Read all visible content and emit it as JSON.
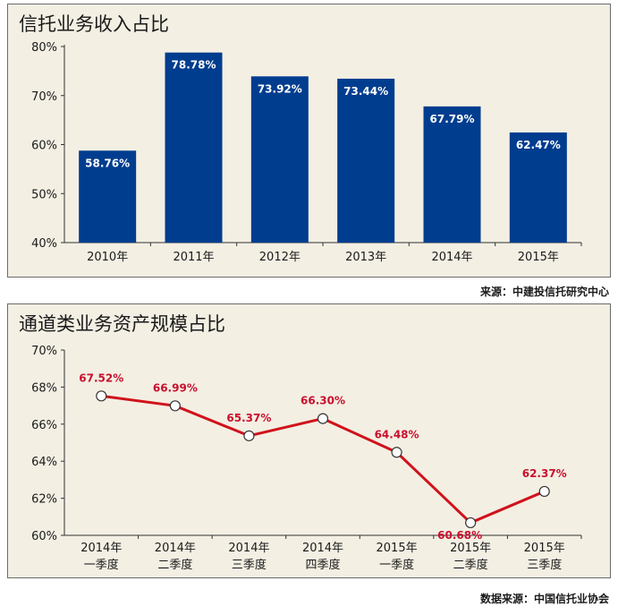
{
  "chart_data": [
    {
      "type": "bar",
      "title": "信托业务收入占比",
      "categories": [
        "2010年",
        "2011年",
        "2012年",
        "2013年",
        "2014年",
        "2015年"
      ],
      "values": [
        58.76,
        78.78,
        73.92,
        73.44,
        67.79,
        62.47
      ],
      "value_labels": [
        "58.76%",
        "78.78%",
        "73.92%",
        "73.44%",
        "67.79%",
        "62.47%"
      ],
      "yticks": [
        "40%",
        "50%",
        "60%",
        "70%",
        "80%"
      ],
      "ylim": [
        40,
        80
      ],
      "grid": false,
      "bar_color": "#003d8f",
      "source": "来源：中建投信托研究中心"
    },
    {
      "type": "line",
      "title": "通道类业务资产规模占比",
      "categories": [
        [
          "2014年",
          "一季度"
        ],
        [
          "2014年",
          "二季度"
        ],
        [
          "2014年",
          "三季度"
        ],
        [
          "2014年",
          "四季度"
        ],
        [
          "2015年",
          "一季度"
        ],
        [
          "2015年",
          "二季度"
        ],
        [
          "2015年",
          "三季度"
        ]
      ],
      "values": [
        67.52,
        66.99,
        65.37,
        66.3,
        64.48,
        60.68,
        62.37
      ],
      "value_labels": [
        "67.52%",
        "66.99%",
        "65.37%",
        "66.30%",
        "64.48%",
        "60.68%",
        "62.37%"
      ],
      "yticks": [
        "60%",
        "62%",
        "64%",
        "66%",
        "68%",
        "70%"
      ],
      "ylim": [
        60,
        70
      ],
      "grid": false,
      "line_color": "#d0121b",
      "source": "数据来源：中国信托业协会"
    }
  ]
}
